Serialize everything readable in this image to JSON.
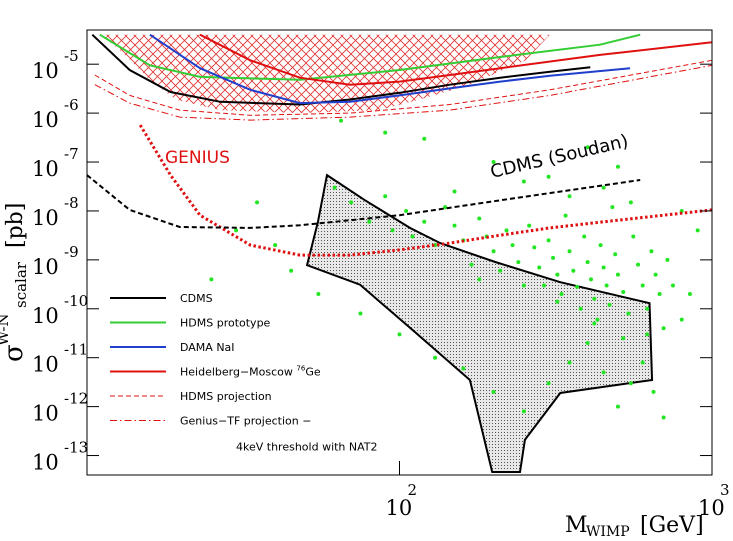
{
  "chart_data": {
    "type": "line",
    "xlabel": {
      "symbol": "M",
      "sub": "WIMP",
      "unit": "[GeV]"
    },
    "ylabel": {
      "symbol": "σ",
      "sup": "W-N",
      "sub": "scalar",
      "unit": "[pb]"
    },
    "log_x": true,
    "log_y": true,
    "xlim": [
      10,
      1000
    ],
    "ylim": [
      4e-14,
      5e-05
    ],
    "xticks": [
      {
        "value": 100,
        "label": "10",
        "exponent": "2"
      },
      {
        "value": 1000,
        "label": "10",
        "exponent": "3"
      }
    ],
    "yticks": [
      {
        "value": 1e-05,
        "label": "10",
        "exponent": "-5"
      },
      {
        "value": 1e-06,
        "label": "10",
        "exponent": "-6"
      },
      {
        "value": 1e-07,
        "label": "10",
        "exponent": "-7"
      },
      {
        "value": 1e-08,
        "label": "10",
        "exponent": "-8"
      },
      {
        "value": 1e-09,
        "label": "10",
        "exponent": "-9"
      },
      {
        "value": 1e-10,
        "label": "10",
        "exponent": "-10"
      },
      {
        "value": 1e-11,
        "label": "10",
        "exponent": "-11"
      },
      {
        "value": 1e-12,
        "label": "10",
        "exponent": "-12"
      },
      {
        "value": 1e-13,
        "label": "10",
        "exponent": "-13"
      }
    ],
    "regions": [
      {
        "color": "#e03030",
        "fill": "crosshatch",
        "x": [
          11,
          303,
          253,
          168,
          116,
          86,
          48,
          26.7,
          19.2,
          15.9,
          12.7
        ],
        "values": [
          4e-05,
          4e-05,
          1.2e-05,
          3.8e-06,
          1.9e-06,
          1.15e-06,
          1e-06,
          1.15e-06,
          1.9e-06,
          4.8e-06,
          2e-05
        ]
      },
      {
        "color": "#000000",
        "fill": "dots",
        "x": [
          58.6,
          77.6,
          108,
          135,
          202,
          327,
          631,
          643,
          327,
          252,
          243,
          198,
          168,
          110,
          74.8,
          50.6,
          54.8
        ],
        "values": [
          5.4e-08,
          1.65e-08,
          4.5e-09,
          2.2e-09,
          9.1e-10,
          3.5e-10,
          1.3e-10,
          3.5e-12,
          1.9e-12,
          2.1e-13,
          4.6e-14,
          4.6e-14,
          3.5e-12,
          3.7e-11,
          3.1e-10,
          7.8e-10,
          5.9e-09
        ]
      }
    ],
    "points": {
      "color": "#22e622",
      "x": [
        62,
        70,
        80,
        90,
        95,
        105,
        110,
        120,
        130,
        140,
        150,
        160,
        170,
        180,
        190,
        200,
        210,
        220,
        230,
        240,
        250,
        260,
        270,
        280,
        290,
        300,
        310,
        320,
        330,
        340,
        350,
        360,
        370,
        380,
        390,
        400,
        410,
        420,
        430,
        440,
        450,
        460,
        470,
        480,
        490,
        500,
        520,
        540,
        560,
        580,
        600,
        620,
        640,
        660,
        680,
        700,
        720,
        750,
        800,
        850,
        40,
        45,
        35,
        30,
        55,
        75,
        100,
        130,
        160,
        200,
        250,
        300,
        350,
        400,
        450,
        500,
        550,
        600,
        650,
        700,
        120,
        200,
        300,
        400,
        500,
        150,
        250,
        350,
        450,
        550,
        25,
        65,
        90,
        800,
        900,
        180,
        320,
        420,
        520,
        620
      ],
      "values": [
        3e-08,
        1.5e-08,
        6e-09,
        2e-08,
        4e-09,
        1e-08,
        3e-09,
        6e-09,
        2e-09,
        1.2e-08,
        5e-09,
        2.5e-09,
        8e-10,
        7e-09,
        3e-09,
        1.5e-09,
        6e-10,
        4e-09,
        2e-09,
        9e-10,
        3e-10,
        5e-09,
        1.8e-09,
        7e-10,
        3e-10,
        2.5e-09,
        1.1e-09,
        5e-10,
        2e-10,
        8e-09,
        1.5e-09,
        6e-10,
        2.8e-10,
        1e-10,
        3e-09,
        9e-10,
        4e-10,
        1.6e-10,
        6e-11,
        2e-09,
        7e-10,
        3e-10,
        1.2e-10,
        1.2e-08,
        1.3e-09,
        5e-10,
        2.2e-10,
        8e-11,
        3e-09,
        8e-10,
        3e-10,
        1e-10,
        1.5e-09,
        5e-10,
        2e-10,
        4e-11,
        1e-09,
        3e-10,
        6e-11,
        2e-10,
        2e-09,
        6e-10,
        1.5e-08,
        4e-09,
        2e-10,
        8e-11,
        3e-11,
        1e-11,
        6e-12,
        2e-12,
        8e-13,
        3e-12,
        8e-12,
        2e-11,
        5e-12,
        1e-12,
        3e-12,
        8e-12,
        2e-12,
        6e-13,
        3e-07,
        1e-07,
        5e-08,
        2e-07,
        8e-08,
        2.5e-08,
        4e-08,
        2e-08,
        3e-08,
        1.5e-08,
        4e-10,
        7e-07,
        4e-07,
        1e-08,
        4e-09,
        4e-10,
        1.4e-10,
        5e-11,
        2.5e-11,
        3e-11
      ]
    },
    "series": [
      {
        "name": "CDMS",
        "color": "#000000",
        "style": "solid",
        "width": 2,
        "in_legend": true,
        "x": [
          10.4,
          13.7,
          18.5,
          26.7,
          48,
          69.5,
          100,
          145,
          210,
          303,
          408
        ],
        "values": [
          4e-05,
          7.6e-06,
          2.7e-06,
          1.7e-06,
          1.5e-06,
          1.9e-06,
          2.6e-06,
          3.8e-06,
          5.3e-06,
          7e-06,
          8.7e-06
        ]
      },
      {
        "name": "HDMS prototype",
        "color": "#33cc33",
        "style": "solid",
        "width": 2,
        "in_legend": true,
        "x": [
          11,
          15.9,
          23,
          48,
          100,
          210,
          438,
          589
        ],
        "values": [
          4e-05,
          9.5e-06,
          5.5e-06,
          4.8e-06,
          7.6e-06,
          1.4e-05,
          2.5e-05,
          4e-05
        ]
      },
      {
        "name": "DAMA NaI",
        "color": "#1f3fcc",
        "style": "solid",
        "width": 2,
        "in_legend": true,
        "x": [
          15.9,
          23,
          33.3,
          48,
          69.5,
          100,
          145,
          210,
          303,
          547
        ],
        "values": [
          4e-05,
          8.3e-06,
          3e-06,
          1.6e-06,
          1.7e-06,
          2.3e-06,
          3.2e-06,
          4.4e-06,
          5.8e-06,
          8.3e-06
        ]
      },
      {
        "name": "Heidelberg−Moscow ",
        "name_sup": "76",
        "name_suffix": "Ge",
        "color": "#e01010",
        "style": "solid",
        "width": 2,
        "in_legend": true,
        "x": [
          23,
          33.3,
          48,
          69.5,
          100,
          145,
          210,
          438,
          1000
        ],
        "values": [
          4e-05,
          1.2e-05,
          5.3e-06,
          3.8e-06,
          4.4e-06,
          6e-06,
          8.3e-06,
          1.55e-05,
          2.8e-05
        ]
      },
      {
        "name": "HDMS projection",
        "color": "#e01010",
        "style": "dashed",
        "width": 1,
        "in_legend": true,
        "x": [
          10.6,
          13.7,
          19.8,
          33.3,
          69.5,
          145,
          303,
          1000
        ],
        "values": [
          6e-06,
          2.3e-06,
          1.15e-06,
          9e-07,
          1e-06,
          1.5e-06,
          3e-06,
          1.2e-05
        ]
      },
      {
        "name": "Genius−TF projection −",
        "name_line2": "4keV threshold with NAT2",
        "color": "#e01010",
        "style": "dashdot",
        "width": 1,
        "in_legend": true,
        "x": [
          10.6,
          13.7,
          19.8,
          33.3,
          69.5,
          145,
          303,
          1000
        ],
        "values": [
          3.8e-06,
          1.6e-06,
          8.3e-07,
          7.2e-07,
          8.3e-07,
          1.15e-06,
          2.3e-06,
          9.5e-06
        ]
      },
      {
        "name": "GENIUS",
        "color": "#e01010",
        "style": "dotted",
        "width": 3,
        "in_legend": false,
        "x": [
          14.8,
          18.5,
          23,
          33.3,
          48,
          69.5,
          100,
          145,
          210,
          303,
          438,
          1000
        ],
        "values": [
          5.7e-07,
          5.4e-08,
          8.2e-09,
          2e-09,
          1.25e-09,
          1.25e-09,
          1.6e-09,
          2.2e-09,
          3.2e-09,
          4.5e-09,
          5.9e-09,
          1.05e-08
        ]
      },
      {
        "name": "CDMS (Soudan)",
        "color": "#000000",
        "style": "dashed",
        "width": 2,
        "in_legend": false,
        "x": [
          10,
          13.7,
          19.8,
          33.3,
          48,
          100,
          210,
          589
        ],
        "values": [
          5.4e-08,
          1.05e-08,
          4.7e-09,
          4.5e-09,
          5.1e-09,
          8.2e-09,
          1.65e-08,
          4.3e-08
        ]
      }
    ]
  }
}
